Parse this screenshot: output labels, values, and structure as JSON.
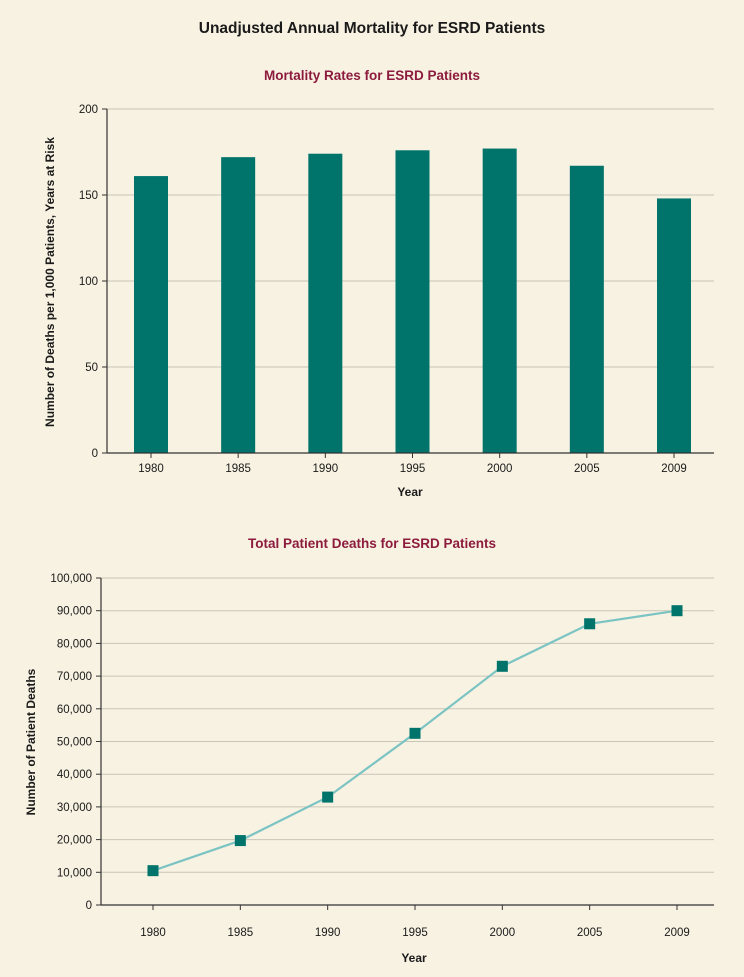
{
  "title": "Unadjusted Annual Mortality for ESRD Patients",
  "colors": {
    "background": "#f8f2e2",
    "bar": "#00736b",
    "line": "#7cc4c4",
    "marker": "#00736b",
    "chart_title": "#8c1b3e"
  },
  "chart_data": [
    {
      "type": "bar",
      "title": "Mortality Rates for ESRD Patients",
      "xlabel": "Year",
      "ylabel": "Number of Deaths per 1,000 Patients, Years at Risk",
      "categories": [
        "1980",
        "1985",
        "1990",
        "1995",
        "2000",
        "2005",
        "2009"
      ],
      "values": [
        161,
        172,
        174,
        176,
        177,
        167,
        148
      ],
      "ylim": [
        0,
        200
      ],
      "yticks": [
        0,
        50,
        100,
        150,
        200
      ],
      "ytick_labels": [
        "0",
        "50",
        "100",
        "150",
        "200"
      ],
      "grid": true
    },
    {
      "type": "line",
      "title": "Total Patient Deaths for ESRD Patients",
      "xlabel": "Year",
      "ylabel": "Number of Patient Deaths",
      "x": [
        "1980",
        "1985",
        "1990",
        "1995",
        "2000",
        "2005",
        "2009"
      ],
      "values": [
        10500,
        19700,
        33000,
        52500,
        73000,
        86000,
        90000
      ],
      "ylim": [
        0,
        100000
      ],
      "yticks": [
        0,
        10000,
        20000,
        30000,
        40000,
        50000,
        60000,
        70000,
        80000,
        90000,
        100000
      ],
      "ytick_labels": [
        "0",
        "10,000",
        "20,000",
        "30,000",
        "40,000",
        "50,000",
        "60,000",
        "70,000",
        "80,000",
        "90,000",
        "100,000"
      ],
      "grid": true,
      "markers": "square"
    }
  ]
}
